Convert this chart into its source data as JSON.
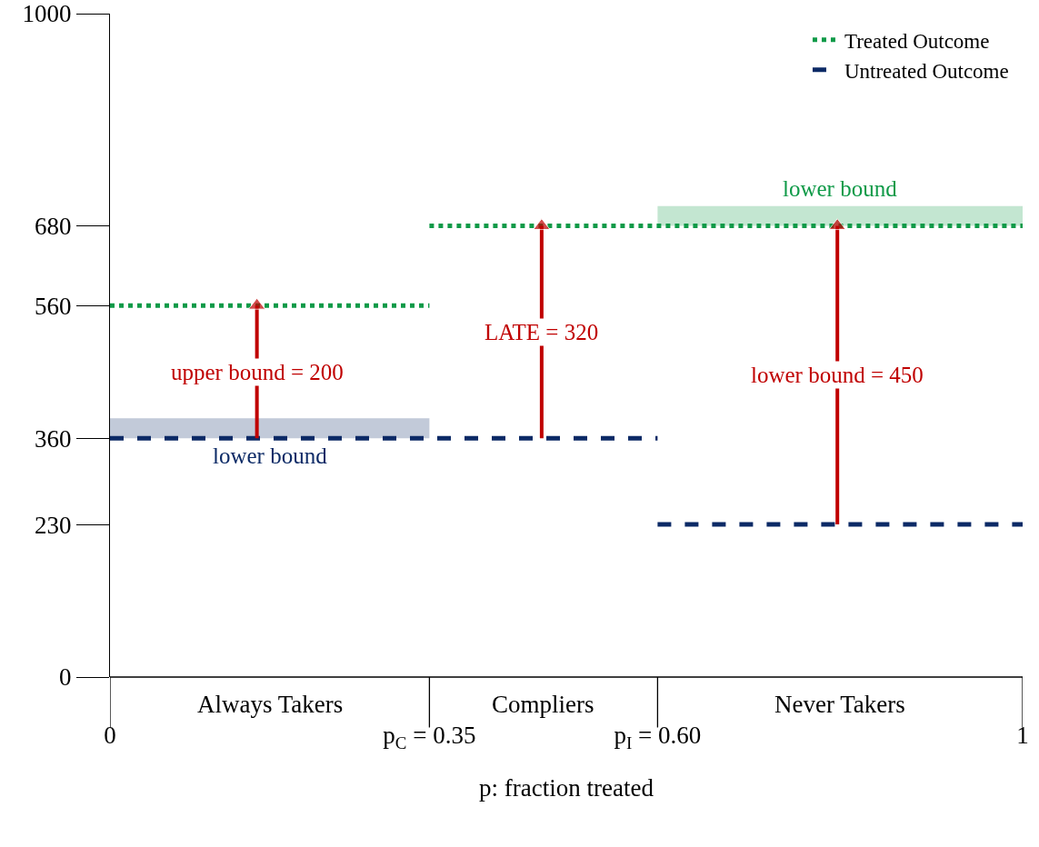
{
  "chart_data": {
    "type": "line",
    "xlabel": "p: fraction treated",
    "xlim": [
      0,
      1
    ],
    "ylim": [
      0,
      1000
    ],
    "xticks": [
      0,
      {
        "value": 0.35,
        "label": "p$_{C}$ = 0.35"
      },
      {
        "value": 0.6,
        "label": "p$_{I}$ = 0.60"
      },
      1
    ],
    "yticks": [
      0,
      230,
      360,
      560,
      680,
      1000
    ],
    "grid": false,
    "legend": "top right",
    "series": [
      {
        "name": "Treated Outcome",
        "color": "#0f9a48",
        "line_style": "dotted",
        "x": [
          0,
          0.35
        ],
        "values": [
          560,
          560
        ]
      },
      {
        "color": "#0f9a48",
        "line_style": "dotted",
        "x": [
          0.35,
          0.6,
          1
        ],
        "values": [
          680,
          680,
          680
        ],
        "lower": [
          null,
          680,
          680
        ],
        "upper": [
          null,
          710,
          710
        ]
      },
      {
        "name": "Untreated Outcome",
        "color": "#0c2a66",
        "line_style": "dashed",
        "x": [
          0,
          0.35,
          0.6
        ],
        "values": [
          360,
          360,
          360
        ],
        "lower": [
          360,
          360,
          null
        ],
        "upper": [
          390,
          390,
          null
        ]
      },
      {
        "color": "#0c2a66",
        "line_style": "dashed",
        "x": [
          0.6,
          1
        ],
        "values": [
          230,
          230
        ]
      },
      {
        "name": "upper bound = 200",
        "color": "#c00000",
        "marker": "triangle",
        "x": [
          0.161,
          0.161
        ],
        "values": [
          360,
          560
        ]
      },
      {
        "name": "LATE = 320",
        "color": "#c00000",
        "marker": "triangle",
        "x": [
          0.473,
          0.473
        ],
        "values": [
          360,
          680
        ]
      },
      {
        "name": "lower bound = 450",
        "color": "#c00000",
        "marker": "triangle",
        "x": [
          0.797,
          0.797
        ],
        "values": [
          230,
          680
        ]
      }
    ],
    "annotations": [
      "Always Takers",
      "Compliers",
      "Never Takers",
      {
        "text": "lower bound",
        "x": 0.175,
        "y": 360
      },
      {
        "text": "lower bound",
        "x": 0.8,
        "y": 710
      }
    ]
  }
}
